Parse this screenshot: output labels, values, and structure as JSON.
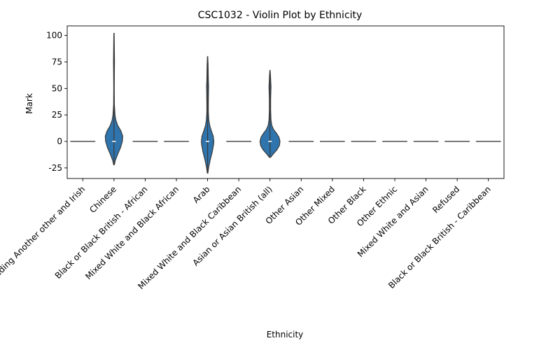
{
  "chart_data": {
    "type": "violin",
    "title": "CSC1032 - Violin Plot by Ethnicity",
    "xlabel": "Ethnicity",
    "ylabel": "Mark",
    "ylim": [
      -35,
      109
    ],
    "yticks": [
      -25,
      0,
      25,
      50,
      75,
      100
    ],
    "grid": false,
    "color": "#2f74ad",
    "categories": [
      "White including Another other and Irish",
      "Chinese",
      "Black or Black British - African",
      "Mixed White and Black African",
      "Arab",
      "Mixed White and Black Caribbean",
      "Asian or Asian British (all)",
      "Other Asian",
      "Other Mixed",
      "Other Black",
      "Other Ethnic",
      "Mixed White and Asian",
      "Refused",
      "Black or Black British - Caribbean"
    ],
    "violins": [
      null,
      {
        "profile": [
          [
            -22,
            0.03
          ],
          [
            -18,
            0.1
          ],
          [
            -12,
            0.3
          ],
          [
            -6,
            0.52
          ],
          [
            0,
            0.67
          ],
          [
            5,
            0.7
          ],
          [
            10,
            0.55
          ],
          [
            15,
            0.3
          ],
          [
            20,
            0.15
          ],
          [
            25,
            0.08
          ],
          [
            35,
            0.03
          ],
          [
            50,
            0.02
          ],
          [
            65,
            0.03
          ],
          [
            75,
            0.04
          ],
          [
            85,
            0.03
          ],
          [
            95,
            0.02
          ],
          [
            102,
            0.01
          ]
        ],
        "median": 0
      },
      null,
      null,
      {
        "profile": [
          [
            -30,
            0.02
          ],
          [
            -25,
            0.08
          ],
          [
            -18,
            0.2
          ],
          [
            -10,
            0.37
          ],
          [
            -3,
            0.48
          ],
          [
            0,
            0.5
          ],
          [
            5,
            0.45
          ],
          [
            10,
            0.3
          ],
          [
            15,
            0.17
          ],
          [
            20,
            0.1
          ],
          [
            28,
            0.06
          ],
          [
            35,
            0.06
          ],
          [
            45,
            0.07
          ],
          [
            52,
            0.08
          ],
          [
            58,
            0.06
          ],
          [
            65,
            0.05
          ],
          [
            72,
            0.04
          ],
          [
            80,
            0.01
          ]
        ],
        "median": 0
      },
      null,
      {
        "profile": [
          [
            -15,
            0.05
          ],
          [
            -12,
            0.25
          ],
          [
            -8,
            0.55
          ],
          [
            -4,
            0.75
          ],
          [
            0,
            0.8
          ],
          [
            4,
            0.72
          ],
          [
            8,
            0.5
          ],
          [
            11,
            0.3
          ],
          [
            15,
            0.15
          ],
          [
            20,
            0.08
          ],
          [
            30,
            0.05
          ],
          [
            40,
            0.05
          ],
          [
            48,
            0.07
          ],
          [
            52,
            0.08
          ],
          [
            56,
            0.06
          ],
          [
            62,
            0.04
          ],
          [
            67,
            0.01
          ]
        ],
        "median": 0
      },
      null,
      null,
      null,
      null,
      null,
      null,
      null
    ]
  }
}
